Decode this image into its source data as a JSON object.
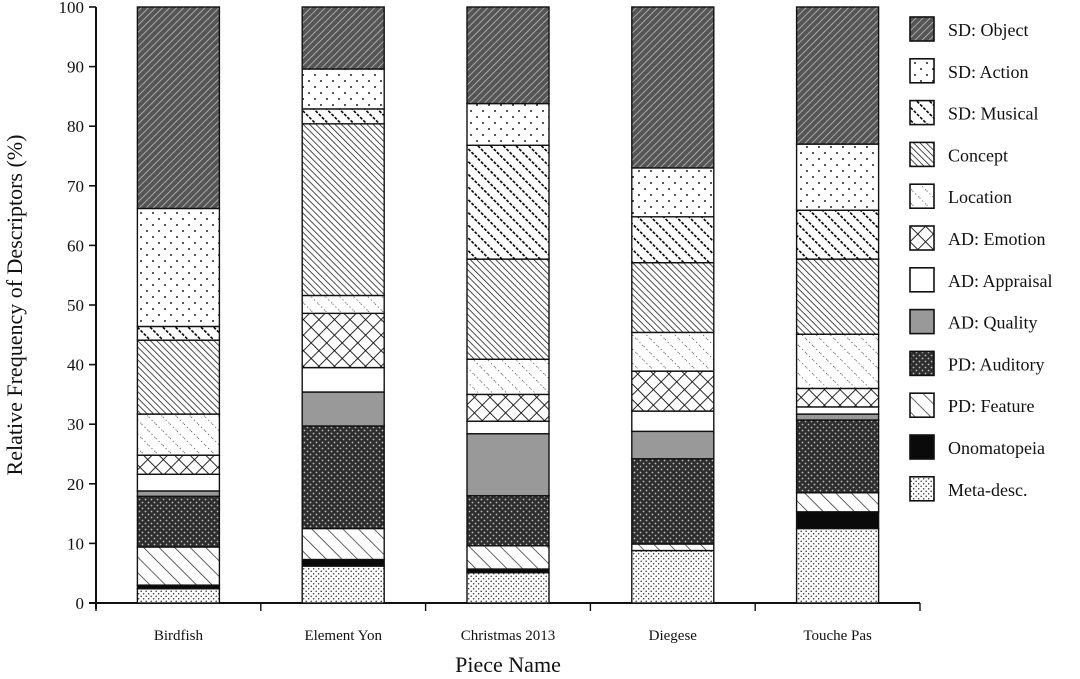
{
  "chart_data": {
    "type": "bar",
    "stacked": true,
    "title": "",
    "xlabel": "Piece Name",
    "ylabel": "Relative Frequency of Descriptors (%)",
    "ylim": [
      0,
      100
    ],
    "yticks": [
      0,
      10,
      20,
      30,
      40,
      50,
      60,
      70,
      80,
      90,
      100
    ],
    "grid": false,
    "legend_position": "right",
    "categories": [
      "Birdfish",
      "Element Yon",
      "Christmas 2013",
      "Diegese",
      "Touche Pas"
    ],
    "series": [
      {
        "name": "Meta-desc.",
        "pattern": "meta",
        "values": [
          2.4,
          6.2,
          5.1,
          8.8,
          12.5
        ]
      },
      {
        "name": "Onomatopeia",
        "pattern": "onom",
        "values": [
          0.6,
          1.1,
          0.6,
          0.0,
          2.8
        ]
      },
      {
        "name": "PD: Feature",
        "pattern": "feature",
        "values": [
          6.4,
          5.2,
          3.9,
          1.1,
          3.2
        ]
      },
      {
        "name": "PD: Auditory",
        "pattern": "auditory",
        "values": [
          8.5,
          17.2,
          8.4,
          14.3,
          12.2
        ]
      },
      {
        "name": "AD: Quality",
        "pattern": "quality",
        "values": [
          0.9,
          5.7,
          10.4,
          4.6,
          1.0
        ]
      },
      {
        "name": "AD: Appraisal",
        "pattern": "appraisal",
        "values": [
          2.8,
          4.1,
          2.1,
          3.4,
          1.2
        ]
      },
      {
        "name": "AD: Emotion",
        "pattern": "emotion",
        "values": [
          3.2,
          9.1,
          4.5,
          6.7,
          3.1
        ]
      },
      {
        "name": "Location",
        "pattern": "location",
        "values": [
          6.9,
          3.0,
          5.9,
          6.5,
          9.1
        ]
      },
      {
        "name": "Concept",
        "pattern": "concept",
        "values": [
          12.4,
          28.8,
          16.8,
          11.7,
          12.6
        ]
      },
      {
        "name": "SD: Musical",
        "pattern": "musical",
        "values": [
          2.3,
          2.5,
          19.1,
          7.7,
          8.2
        ]
      },
      {
        "name": "SD: Action",
        "pattern": "action",
        "values": [
          19.8,
          6.7,
          7.0,
          8.2,
          11.1
        ]
      },
      {
        "name": "SD: Object",
        "pattern": "object",
        "values": [
          33.8,
          10.4,
          16.2,
          27.0,
          23.0
        ]
      }
    ],
    "legend_order": [
      "SD: Object",
      "SD: Action",
      "SD: Musical",
      "Concept",
      "Location",
      "AD: Emotion",
      "AD: Appraisal",
      "AD: Quality",
      "PD: Auditory",
      "PD: Feature",
      "Onomatopeia",
      "Meta-desc."
    ]
  }
}
